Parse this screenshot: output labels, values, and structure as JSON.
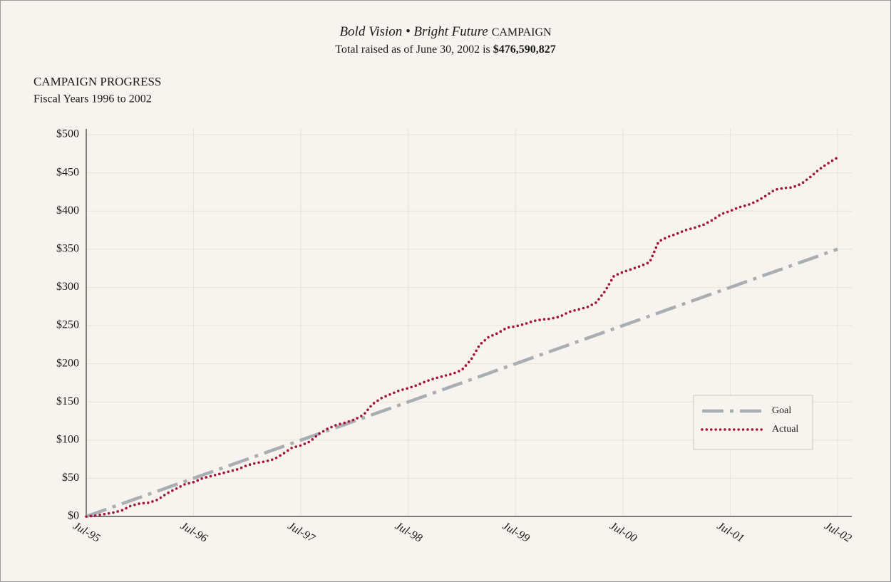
{
  "chart_data": {
    "type": "line",
    "title": [
      "Bold Vision • Bright Future",
      "CAMPAIGN"
    ],
    "subtitle": [
      "Total raised as of June 30, 2002 is",
      "$476,590,827"
    ],
    "heading": "CAMPAIGN PROGRESS",
    "subheading": "Fiscal Years 1996 to 2002",
    "xlim": [
      "1995-07",
      "2002-07"
    ],
    "xticks": [
      {
        "value": "1995-07",
        "label": "Jul-95"
      },
      {
        "value": "1996-07",
        "label": "Jul-96"
      },
      {
        "value": "1997-07",
        "label": "Jul-97"
      },
      {
        "value": "1998-07",
        "label": "Jul-98"
      },
      {
        "value": "1999-07",
        "label": "Jul-99"
      },
      {
        "value": "2000-07",
        "label": "Jul-00"
      },
      {
        "value": "2001-07",
        "label": "Jul-01"
      },
      {
        "value": "2002-07",
        "label": "Jul-02"
      }
    ],
    "ylim": [
      0,
      500
    ],
    "yticks": [
      {
        "value": 0,
        "label": "$0"
      },
      {
        "value": 50,
        "label": "$50"
      },
      {
        "value": 100,
        "label": "$100"
      },
      {
        "value": 150,
        "label": "$150"
      },
      {
        "value": 200,
        "label": "$200"
      },
      {
        "value": 250,
        "label": "$250"
      },
      {
        "value": 300,
        "label": "$300"
      },
      {
        "value": 350,
        "label": "$350"
      },
      {
        "value": 400,
        "label": "$400"
      },
      {
        "value": 450,
        "label": "$450"
      },
      {
        "value": 500,
        "label": "$500"
      }
    ],
    "grid": true,
    "legend_position": "lower right",
    "series": [
      {
        "name": "Goal",
        "color": "#a9aeb2",
        "style": "dash-dot",
        "x": [
          "1995-07",
          "2002-07"
        ],
        "values": [
          0,
          350
        ]
      },
      {
        "name": "Actual",
        "color": "#a3123a",
        "style": "dotted",
        "x": [
          "1995-07",
          "1995-08",
          "1995-09",
          "1995-10",
          "1995-11",
          "1995-12",
          "1996-01",
          "1996-02",
          "1996-03",
          "1996-04",
          "1996-05",
          "1996-06",
          "1996-07",
          "1996-08",
          "1996-09",
          "1996-10",
          "1996-11",
          "1996-12",
          "1997-01",
          "1997-02",
          "1997-03",
          "1997-04",
          "1997-05",
          "1997-06",
          "1997-07",
          "1997-08",
          "1997-09",
          "1997-10",
          "1997-11",
          "1997-12",
          "1998-01",
          "1998-02",
          "1998-03",
          "1998-04",
          "1998-05",
          "1998-06",
          "1998-07",
          "1998-08",
          "1998-09",
          "1998-10",
          "1998-11",
          "1998-12",
          "1999-01",
          "1999-02",
          "1999-03",
          "1999-04",
          "1999-05",
          "1999-06",
          "1999-07",
          "1999-08",
          "1999-09",
          "1999-10",
          "1999-11",
          "1999-12",
          "2000-01",
          "2000-02",
          "2000-03",
          "2000-04",
          "2000-05",
          "2000-06",
          "2000-07",
          "2000-08",
          "2000-09",
          "2000-10",
          "2000-11",
          "2000-12",
          "2001-01",
          "2001-02",
          "2001-03",
          "2001-04",
          "2001-05",
          "2001-06",
          "2001-07",
          "2001-08",
          "2001-09",
          "2001-10",
          "2001-11",
          "2001-12",
          "2002-01",
          "2002-02",
          "2002-03",
          "2002-04",
          "2002-05",
          "2002-06",
          "2002-07"
        ],
        "values": [
          0,
          1,
          3,
          5,
          8,
          14,
          17,
          18,
          22,
          30,
          36,
          42,
          45,
          50,
          53,
          56,
          59,
          62,
          67,
          70,
          72,
          75,
          82,
          90,
          93,
          98,
          108,
          115,
          120,
          123,
          127,
          133,
          147,
          155,
          160,
          165,
          168,
          172,
          177,
          181,
          184,
          187,
          192,
          205,
          225,
          235,
          240,
          247,
          249,
          252,
          256,
          258,
          259,
          262,
          268,
          271,
          274,
          280,
          295,
          315,
          320,
          324,
          328,
          333,
          360,
          366,
          370,
          375,
          378,
          382,
          388,
          396,
          400,
          405,
          408,
          413,
          420,
          428,
          430,
          431,
          436,
          445,
          455,
          463,
          470
        ]
      }
    ]
  }
}
